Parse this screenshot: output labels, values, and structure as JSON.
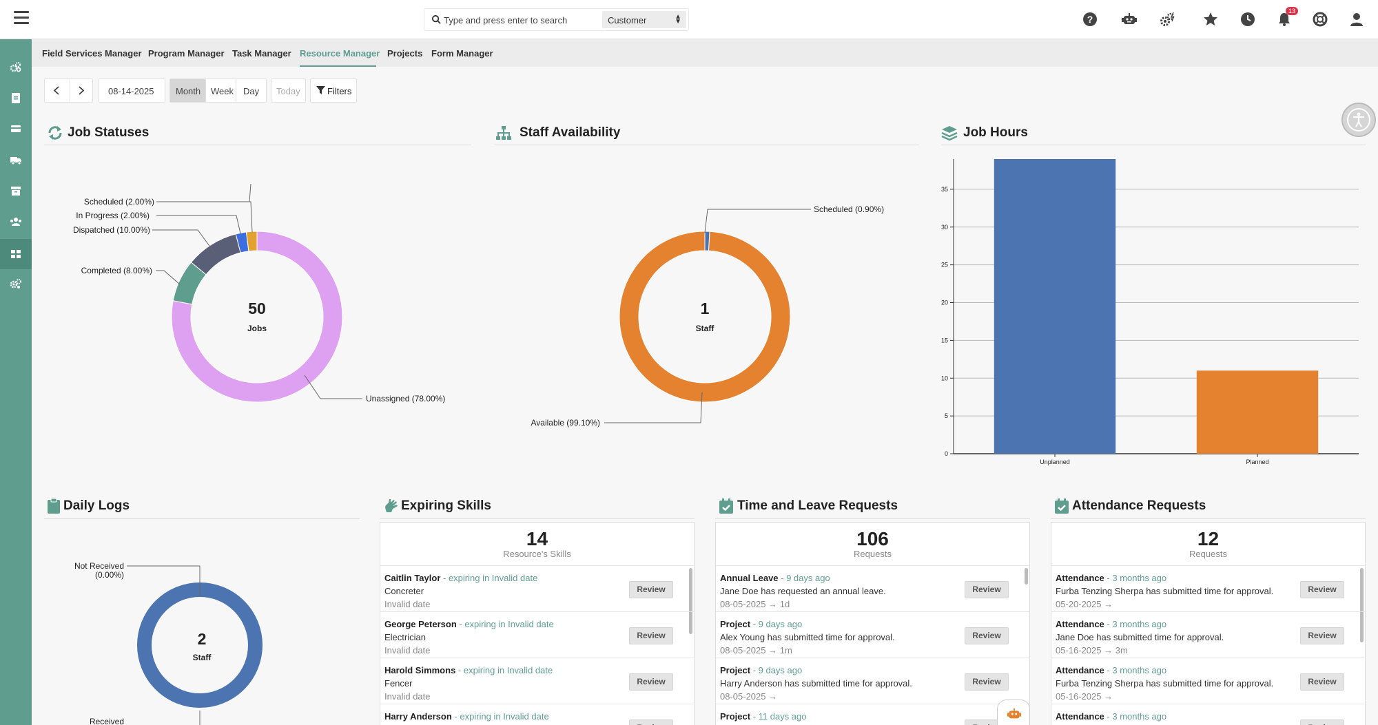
{
  "header": {
    "search_placeholder": "Type and press enter to search",
    "search_scope": "Customer",
    "notification_count": "13",
    "icons": [
      "help-icon",
      "robot-icon",
      "gears-icon",
      "star-icon",
      "clock-icon",
      "bell-icon",
      "lifebuoy-icon",
      "user-icon"
    ]
  },
  "sidebar": {
    "items": [
      "cogs-icon",
      "clipboard-icon",
      "card-icon",
      "truck-icon",
      "archive-icon",
      "users-icon",
      "dashboard-icon",
      "settings-icon"
    ]
  },
  "tabs": [
    {
      "label": "Field Services Manager"
    },
    {
      "label": "Program Manager"
    },
    {
      "label": "Task Manager"
    },
    {
      "label": "Resource Manager",
      "active": true
    },
    {
      "label": "Projects"
    },
    {
      "label": "Form Manager"
    }
  ],
  "toolbar": {
    "date": "08-14-2025",
    "views": [
      "Month",
      "Week",
      "Day"
    ],
    "active_view": "Month",
    "today_label": "Today",
    "filters_label": "Filters"
  },
  "job_statuses": {
    "title": "Job Statuses",
    "center_value": "50",
    "center_label": "Jobs",
    "labels": {
      "scheduled": "Scheduled (2.00%)",
      "in_progress": "In Progress (2.00%)",
      "dispatched": "Dispatched (10.00%)",
      "completed": "Completed (8.00%)",
      "unassigned": "Unassigned (78.00%)"
    },
    "slices": [
      {
        "name": "Unassigned",
        "pct": 78,
        "color": "#dea0f0"
      },
      {
        "name": "Completed",
        "pct": 8,
        "color": "#5f9e8f"
      },
      {
        "name": "Dispatched",
        "pct": 10,
        "color": "#5a5f78"
      },
      {
        "name": "In Progress",
        "pct": 2,
        "color": "#3d6ee0"
      },
      {
        "name": "Scheduled",
        "pct": 2,
        "color": "#e3a230"
      }
    ]
  },
  "staff_availability": {
    "title": "Staff Availability",
    "center_value": "1",
    "center_label": "Staff",
    "labels": {
      "scheduled": "Scheduled (0.90%)",
      "available": "Available (99.10%)"
    },
    "slices": [
      {
        "name": "Available",
        "pct": 99.1,
        "color": "#e48230"
      },
      {
        "name": "Scheduled",
        "pct": 0.9,
        "color": "#4b74b0"
      }
    ]
  },
  "job_hours": {
    "title": "Job Hours"
  },
  "chart_data": {
    "type": "bar",
    "categories": [
      "Unplanned",
      "Planned"
    ],
    "values": [
      39,
      11
    ],
    "colors": [
      "#4b74b0",
      "#e48230"
    ],
    "title": "Job Hours",
    "ylim": [
      0,
      39
    ],
    "yticks": [
      0,
      5,
      10,
      15,
      20,
      25,
      30,
      35
    ],
    "grid": true
  },
  "daily_logs": {
    "title": "Daily Logs",
    "center_value": "2",
    "center_label": "Staff",
    "labels": {
      "not_received_1": "Not Received",
      "not_received_2": "(0.00%)",
      "received": "Received"
    },
    "slices": [
      {
        "name": "Received",
        "pct": 100,
        "color": "#4b74b0"
      }
    ]
  },
  "expiring_skills": {
    "title": "Expiring Skills",
    "count": "14",
    "count_label": "Resource's Skills",
    "items": [
      {
        "name": "Caitlin Taylor",
        "meta": " - expiring in Invalid date",
        "line2": "Concreter",
        "line3": "Invalid date",
        "action": "Review"
      },
      {
        "name": "George Peterson",
        "meta": " - expiring in Invalid date",
        "line2": "Electrician",
        "line3": "Invalid date",
        "action": "Review"
      },
      {
        "name": "Harold Simmons",
        "meta": " - expiring in Invalid date",
        "line2": "Fencer",
        "line3": "Invalid date",
        "action": "Review"
      },
      {
        "name": "Harry Anderson",
        "meta": " - expiring in Invalid date",
        "line2": "",
        "line3": "",
        "action": "Review"
      }
    ]
  },
  "time_leave": {
    "title": "Time and Leave Requests",
    "count": "106",
    "count_label": "Requests",
    "items": [
      {
        "name": "Annual Leave",
        "meta": " - 9 days ago",
        "line2": "Jane Doe has requested an annual leave.",
        "line3": "08-05-2025 → 1d",
        "action": "Review"
      },
      {
        "name": "Project",
        "meta": " - 9 days ago",
        "line2": "Alex Young has submitted time for approval.",
        "line3": "08-05-2025 → 1m",
        "action": "Review"
      },
      {
        "name": "Project",
        "meta": " - 9 days ago",
        "line2": "Harry Anderson has submitted time for approval.",
        "line3": "08-05-2025 →",
        "action": "Review"
      },
      {
        "name": "Project",
        "meta": " - 11 days ago",
        "line2": "",
        "line3": "",
        "action": "Review"
      }
    ]
  },
  "attendance": {
    "title": "Attendance Requests",
    "count": "12",
    "count_label": "Requests",
    "items": [
      {
        "name": "Attendance",
        "meta": " - 3 months ago",
        "line2": "Furba Tenzing Sherpa has submitted time for approval.",
        "line3": "05-20-2025 →",
        "action": "Review"
      },
      {
        "name": "Attendance",
        "meta": " - 3 months ago",
        "line2": "Jane Doe has submitted time for approval.",
        "line3": "05-16-2025 → 3m",
        "action": "Review"
      },
      {
        "name": "Attendance",
        "meta": " - 3 months ago",
        "line2": "Furba Tenzing Sherpa has submitted time for approval.",
        "line3": "05-16-2025 →",
        "action": "Review"
      },
      {
        "name": "Attendance",
        "meta": " - 3 months ago",
        "line2": "",
        "line3": "",
        "action": "Review"
      }
    ]
  },
  "colors": {
    "accent": "#5f9e8f",
    "sidebar": "#5f9e8f",
    "badge": "#d9364a"
  }
}
